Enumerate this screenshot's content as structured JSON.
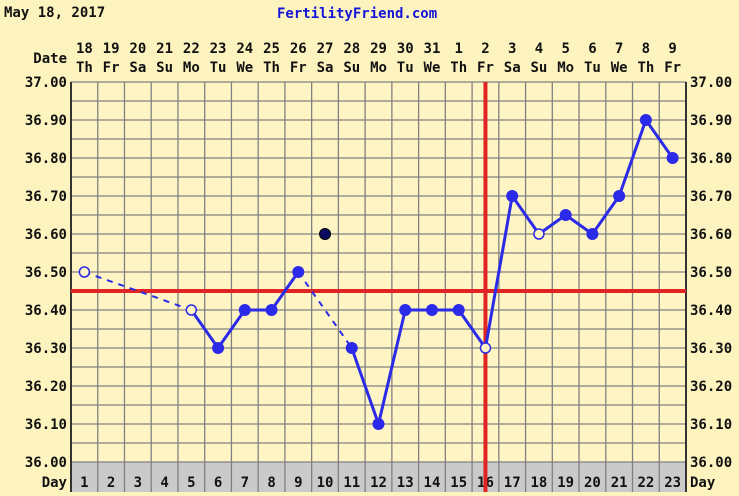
{
  "header": {
    "date": "May 18, 2017",
    "site": "FertilityFriend.com"
  },
  "chart_data": {
    "type": "line",
    "xlabel": "Day",
    "date_row_label": "Date",
    "days": [
      1,
      2,
      3,
      4,
      5,
      6,
      7,
      8,
      9,
      10,
      11,
      12,
      13,
      14,
      15,
      16,
      17,
      18,
      19,
      20,
      21,
      22,
      23
    ],
    "dates": [
      "18",
      "19",
      "20",
      "21",
      "22",
      "23",
      "24",
      "25",
      "26",
      "27",
      "28",
      "29",
      "30",
      "31",
      "1",
      "2",
      "3",
      "4",
      "5",
      "6",
      "7",
      "8",
      "9"
    ],
    "weekdays": [
      "Th",
      "Fr",
      "Sa",
      "Su",
      "Mo",
      "Tu",
      "We",
      "Th",
      "Fr",
      "Sa",
      "Su",
      "Mo",
      "Tu",
      "We",
      "Th",
      "Fr",
      "Sa",
      "Su",
      "Mo",
      "Tu",
      "We",
      "Th",
      "Fr"
    ],
    "ylim": [
      36.0,
      37.0
    ],
    "yticks": [
      "36.00",
      "36.10",
      "36.20",
      "36.30",
      "36.40",
      "36.50",
      "36.60",
      "36.70",
      "36.80",
      "36.90",
      "37.00"
    ],
    "grid": true,
    "points": [
      {
        "day": 1,
        "temp": 36.5,
        "marker": "open"
      },
      {
        "day": 5,
        "temp": 36.4,
        "marker": "open"
      },
      {
        "day": 6,
        "temp": 36.3,
        "marker": "filled"
      },
      {
        "day": 7,
        "temp": 36.4,
        "marker": "filled"
      },
      {
        "day": 8,
        "temp": 36.4,
        "marker": "filled"
      },
      {
        "day": 9,
        "temp": 36.5,
        "marker": "filled"
      },
      {
        "day": 11,
        "temp": 36.3,
        "marker": "filled"
      },
      {
        "day": 12,
        "temp": 36.1,
        "marker": "filled"
      },
      {
        "day": 13,
        "temp": 36.4,
        "marker": "filled"
      },
      {
        "day": 14,
        "temp": 36.4,
        "marker": "filled"
      },
      {
        "day": 15,
        "temp": 36.4,
        "marker": "filled"
      },
      {
        "day": 16,
        "temp": 36.3,
        "marker": "open"
      },
      {
        "day": 17,
        "temp": 36.7,
        "marker": "filled"
      },
      {
        "day": 18,
        "temp": 36.6,
        "marker": "open"
      },
      {
        "day": 19,
        "temp": 36.65,
        "marker": "filled"
      },
      {
        "day": 20,
        "temp": 36.6,
        "marker": "filled"
      },
      {
        "day": 21,
        "temp": 36.7,
        "marker": "filled"
      },
      {
        "day": 22,
        "temp": 36.9,
        "marker": "filled"
      },
      {
        "day": 23,
        "temp": 36.8,
        "marker": "filled"
      }
    ],
    "dashed_segments": [
      [
        1,
        5
      ],
      [
        9,
        11
      ]
    ],
    "discarded_points": [
      {
        "day": 10,
        "temp": 36.6
      }
    ],
    "horizontal_line": 36.45,
    "vertical_line_day": 16,
    "colors": {
      "line": "#2a2ae8",
      "reference_lines": "#e02424",
      "discarded": "#0a0a60",
      "plot_bg": "#fff5c4",
      "grid": "#808080",
      "day_row": "#cacaca"
    }
  }
}
